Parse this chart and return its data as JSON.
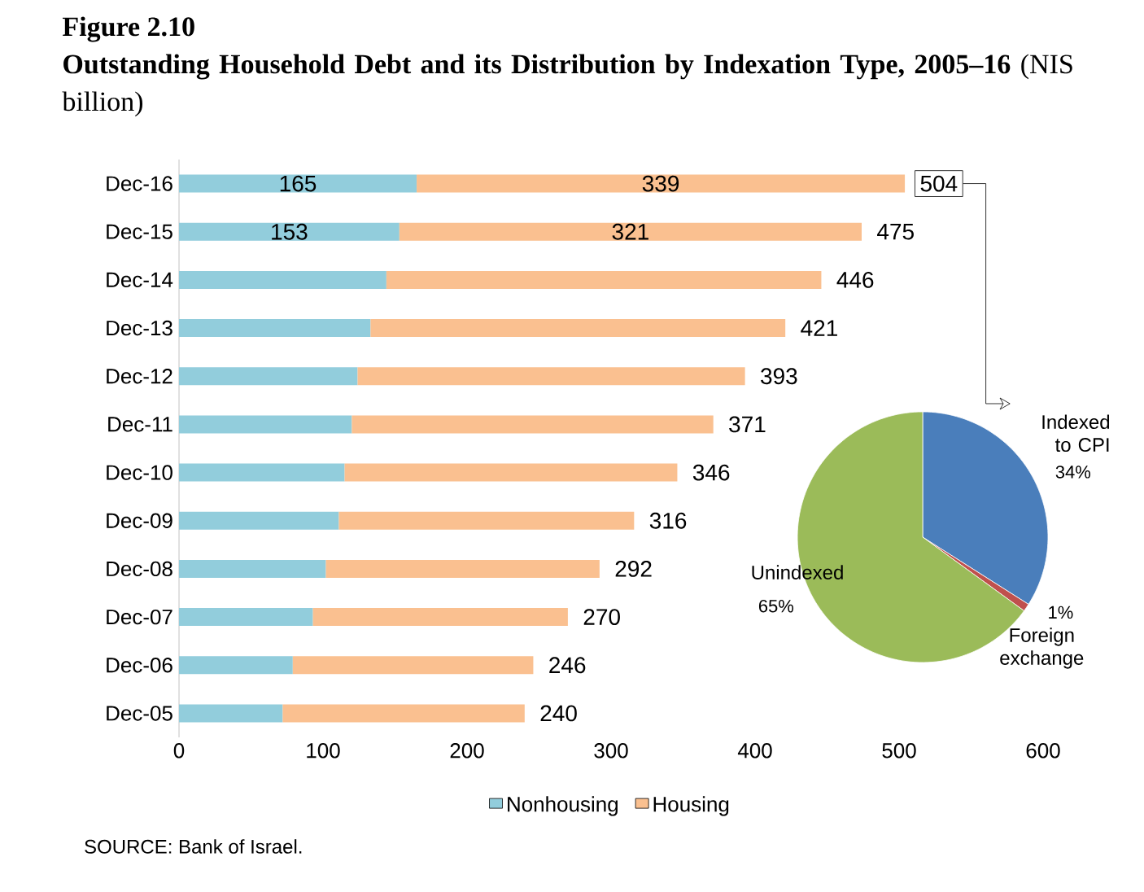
{
  "chart_data": [
    {
      "type": "bar",
      "title": "Figure 2.10",
      "subtitle": "**Outstanding Household Debt and its Distribution by Indexation Type, 2005–16** (NIS billion)",
      "orientation": "horizontal",
      "stacked": true,
      "categories": [
        "Dec-16",
        "Dec-15",
        "Dec-14",
        "Dec-13",
        "Dec-12",
        "Dec-11",
        "Dec-10",
        "Dec-09",
        "Dec-08",
        "Dec-07",
        "Dec-06",
        "Dec-05"
      ],
      "series": [
        {
          "name": "Nonhousing",
          "color": "#92cddc",
          "values": [
            165,
            153,
            144,
            133,
            124,
            120,
            115,
            111,
            102,
            93,
            79,
            72
          ],
          "value_labels": [
            "165",
            "153",
            null,
            null,
            null,
            null,
            null,
            null,
            null,
            null,
            null,
            null
          ]
        },
        {
          "name": "Housing",
          "color": "#fac090",
          "values": [
            339,
            321,
            302,
            288,
            269,
            251,
            231,
            205,
            190,
            177,
            167,
            168
          ],
          "value_labels": [
            "339",
            "321",
            null,
            null,
            null,
            null,
            null,
            null,
            null,
            null,
            null,
            null
          ]
        }
      ],
      "totals": [
        "504",
        "475",
        "446",
        "421",
        "393",
        "371",
        "346",
        "316",
        "292",
        "270",
        "246",
        "240"
      ],
      "xlim": [
        0,
        600
      ],
      "xticks": [
        0,
        100,
        200,
        300,
        400,
        500,
        600
      ],
      "legend": "bottom",
      "annotations": [
        "SOURCE: Bank of Israel."
      ]
    },
    {
      "type": "pie",
      "categories": [
        "Indexed to CPI",
        "Foreign exchange",
        "Unindexed"
      ],
      "values": [
        34,
        1,
        65
      ],
      "colors": [
        "#4a7ebb",
        "#c0504d",
        "#9bbb59"
      ],
      "value_labels": [
        "34%",
        "1%",
        "65%"
      ]
    }
  ]
}
